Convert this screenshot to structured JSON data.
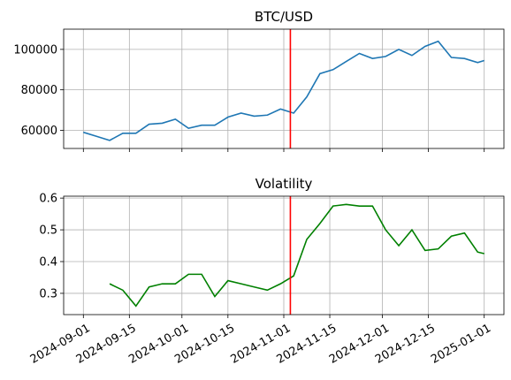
{
  "chart_data": [
    {
      "type": "line",
      "title": "BTC/USD",
      "x": [
        "2024-09-01",
        "2024-09-05",
        "2024-09-09",
        "2024-09-13",
        "2024-09-17",
        "2024-09-21",
        "2024-09-25",
        "2024-09-29",
        "2024-10-03",
        "2024-10-07",
        "2024-10-11",
        "2024-10-15",
        "2024-10-19",
        "2024-10-23",
        "2024-10-27",
        "2024-10-31",
        "2024-11-04",
        "2024-11-08",
        "2024-11-12",
        "2024-11-16",
        "2024-11-20",
        "2024-11-24",
        "2024-11-28",
        "2024-12-02",
        "2024-12-06",
        "2024-12-10",
        "2024-12-14",
        "2024-12-18",
        "2024-12-22",
        "2024-12-26",
        "2024-12-30",
        "2025-01-01"
      ],
      "series": [
        {
          "color": "#1f77b4",
          "values": [
            59000,
            57000,
            55000,
            58500,
            58500,
            63000,
            63500,
            65500,
            61000,
            62500,
            62500,
            66500,
            68500,
            67000,
            67500,
            70500,
            68500,
            76500,
            88000,
            90000,
            94000,
            98000,
            95500,
            96500,
            100000,
            97000,
            101500,
            104000,
            96000,
            95500,
            93500,
            94500
          ]
        }
      ],
      "xlim": [
        "2024-08-26",
        "2025-01-07"
      ],
      "xticks": [
        "2024-09-01",
        "2024-09-15",
        "2024-10-01",
        "2024-10-15",
        "2024-11-01",
        "2024-11-15",
        "2024-12-01",
        "2024-12-15",
        "2025-01-01"
      ],
      "ylim": [
        51000,
        110000
      ],
      "yticks": [
        60000,
        80000,
        100000
      ],
      "grid": true,
      "vline": "2024-11-03",
      "vline_color": "#ff0000"
    },
    {
      "type": "line",
      "title": "Volatility",
      "x": [
        "2024-09-01",
        "2024-09-05",
        "2024-09-09",
        "2024-09-13",
        "2024-09-17",
        "2024-09-21",
        "2024-09-25",
        "2024-09-29",
        "2024-10-03",
        "2024-10-07",
        "2024-10-11",
        "2024-10-15",
        "2024-10-19",
        "2024-10-23",
        "2024-10-27",
        "2024-10-31",
        "2024-11-04",
        "2024-11-08",
        "2024-11-12",
        "2024-11-16",
        "2024-11-20",
        "2024-11-24",
        "2024-11-28",
        "2024-12-02",
        "2024-12-06",
        "2024-12-10",
        "2024-12-14",
        "2024-12-18",
        "2024-12-22",
        "2024-12-26",
        "2024-12-30",
        "2025-01-01"
      ],
      "series": [
        {
          "color": "#008000",
          "values": [
            null,
            null,
            0.33,
            0.31,
            0.26,
            0.32,
            0.33,
            0.33,
            0.36,
            0.36,
            0.29,
            0.34,
            0.33,
            0.32,
            0.31,
            0.33,
            0.355,
            0.47,
            0.52,
            0.575,
            0.58,
            0.575,
            0.575,
            0.5,
            0.45,
            0.5,
            0.435,
            0.44,
            0.48,
            0.49,
            0.43,
            0.425
          ]
        }
      ],
      "xlim": [
        "2024-08-26",
        "2025-01-07"
      ],
      "xticks": [
        "2024-09-01",
        "2024-09-15",
        "2024-10-01",
        "2024-10-15",
        "2024-11-01",
        "2024-11-15",
        "2024-12-01",
        "2024-12-15",
        "2025-01-01"
      ],
      "ylim": [
        0.233,
        0.606
      ],
      "yticks": [
        0.3,
        0.4,
        0.5,
        0.6
      ],
      "grid": true,
      "vline": "2024-11-03",
      "vline_color": "#ff0000"
    }
  ]
}
